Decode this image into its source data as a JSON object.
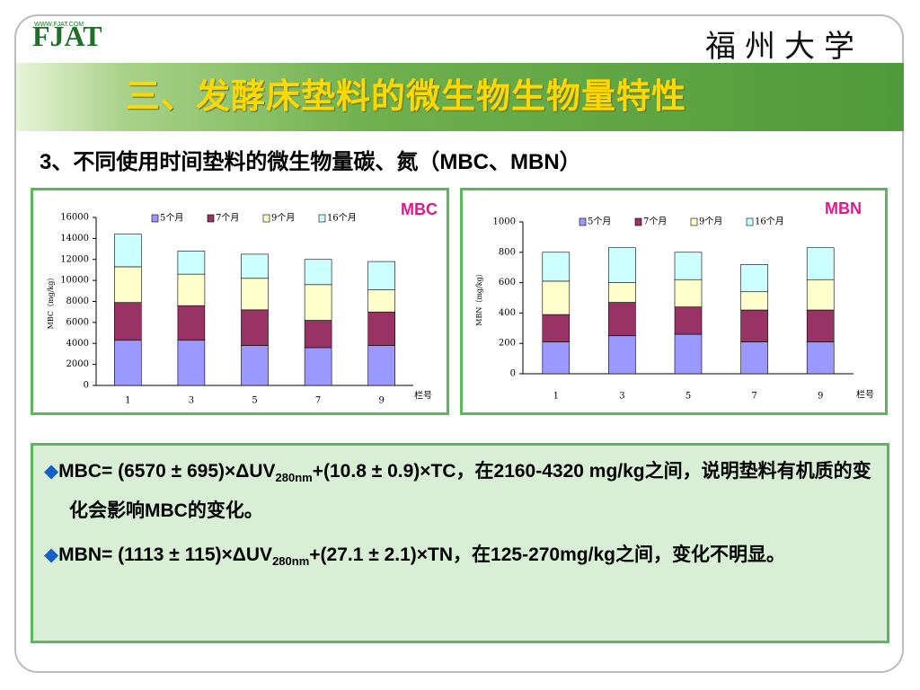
{
  "header": {
    "url": "WWW.FJAT.COM",
    "logo": "FJAT",
    "university": "福州大学",
    "title": "三、发酵床垫料的微生物生物量特性"
  },
  "subtitle": "3、不同使用时间垫料的微生物量碳、氮（MBC、MBN）",
  "chart_data": [
    {
      "type": "stacked_bar",
      "title": "MBC",
      "ylabel": "MBC（mg/kg）",
      "xlabel": "栏号",
      "categories": [
        "1",
        "3",
        "5",
        "7",
        "9"
      ],
      "series": [
        {
          "name": "5个月",
          "color": "#9999ff",
          "values": [
            4300,
            4300,
            3800,
            3600,
            3800
          ]
        },
        {
          "name": "7个月",
          "color": "#993366",
          "values": [
            3600,
            3300,
            3400,
            2600,
            3200
          ]
        },
        {
          "name": "9个月",
          "color": "#ffffcc",
          "values": [
            3400,
            3000,
            3000,
            3400,
            2100
          ]
        },
        {
          "name": "16个月",
          "color": "#ccffff",
          "values": [
            3100,
            2200,
            2300,
            2400,
            2700
          ]
        }
      ],
      "ylim": [
        0,
        16000
      ],
      "yticks": [
        0,
        2000,
        4000,
        6000,
        8000,
        10000,
        12000,
        14000,
        16000
      ]
    },
    {
      "type": "stacked_bar",
      "title": "MBN",
      "ylabel": "MBN（mg/kg）",
      "xlabel": "栏号",
      "categories": [
        "1",
        "3",
        "5",
        "7",
        "9"
      ],
      "series": [
        {
          "name": "5个月",
          "color": "#9999ff",
          "values": [
            210,
            250,
            260,
            210,
            210
          ]
        },
        {
          "name": "7个月",
          "color": "#993366",
          "values": [
            180,
            220,
            180,
            210,
            210
          ]
        },
        {
          "name": "9个月",
          "color": "#ffffcc",
          "values": [
            220,
            130,
            180,
            120,
            200
          ]
        },
        {
          "name": "16个月",
          "color": "#ccffff",
          "values": [
            190,
            230,
            180,
            180,
            210
          ]
        }
      ],
      "ylim": [
        0,
        1000
      ],
      "yticks": [
        0,
        200,
        400,
        600,
        800,
        1000
      ]
    }
  ],
  "bullets": [
    {
      "marker": "◆",
      "before": "MBC= (6570 ± 695)×ΔUV",
      "subscript": "280nm",
      "after": "+(10.8 ± 0.9)×TC，在2160-4320 mg/kg之间，说明垫料有机质的变化会影响MBC的变化。"
    },
    {
      "marker": "◆",
      "before": "MBN= (1113 ± 115)×ΔUV",
      "subscript": "280nm",
      "after": "+(27.1 ± 2.1)×TN，在125-270mg/kg之间，变化不明显。"
    }
  ]
}
